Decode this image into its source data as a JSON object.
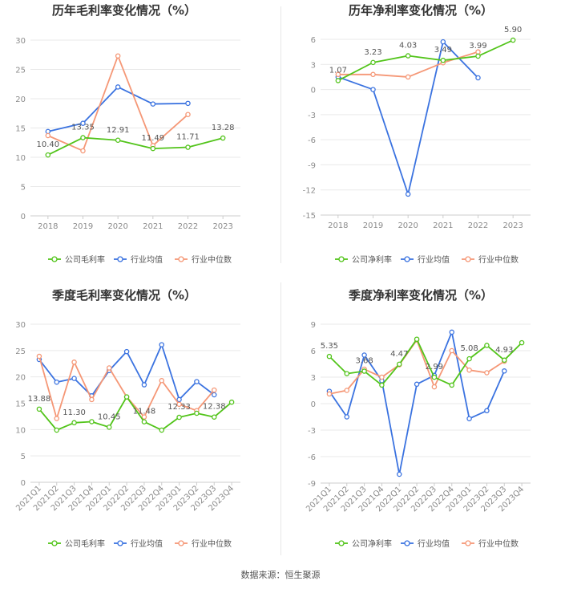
{
  "colors": {
    "company": "#52c41a",
    "industry_avg": "#3b73e0",
    "industry_median": "#f59776",
    "grid": "#e9e9e9",
    "axis_text": "#8c8c8c",
    "title": "#333333"
  },
  "source_text": "数据来源：恒生聚源",
  "chart_data": [
    {
      "type": "line",
      "title": "历年毛利率变化情况（%）",
      "categories": [
        "2018",
        "2019",
        "2020",
        "2021",
        "2022",
        "2023"
      ],
      "ylim": [
        0,
        30
      ],
      "yticks": [
        0,
        5,
        10,
        15,
        20,
        25,
        30
      ],
      "series": [
        {
          "name": "公司毛利率",
          "key": "company",
          "values": [
            10.4,
            13.35,
            12.91,
            11.49,
            11.71,
            13.28
          ]
        },
        {
          "name": "行业均值",
          "key": "industry_avg",
          "values": [
            14.4,
            15.8,
            22.0,
            19.1,
            19.2,
            null
          ]
        },
        {
          "name": "行业中位数",
          "key": "industry_median",
          "values": [
            13.7,
            11.1,
            27.3,
            12.0,
            17.3,
            null
          ]
        }
      ],
      "data_labels": [
        "10.40",
        "13.35",
        "12.91",
        "11.49",
        "11.71",
        "13.28"
      ]
    },
    {
      "type": "line",
      "title": "历年净利率变化情况（%）",
      "categories": [
        "2018",
        "2019",
        "2020",
        "2021",
        "2022",
        "2023"
      ],
      "ylim": [
        -15,
        6
      ],
      "yticks": [
        -15,
        -12,
        -9,
        -6,
        -3,
        0,
        3,
        6
      ],
      "series": [
        {
          "name": "公司净利率",
          "key": "company",
          "values": [
            1.07,
            3.23,
            4.03,
            3.49,
            3.99,
            5.9
          ]
        },
        {
          "name": "行业均值",
          "key": "industry_avg",
          "values": [
            1.5,
            0.0,
            -12.5,
            5.7,
            1.4,
            null
          ]
        },
        {
          "name": "行业中位数",
          "key": "industry_median",
          "values": [
            1.8,
            1.8,
            1.5,
            3.2,
            4.5,
            null
          ]
        }
      ],
      "data_labels": [
        "1.07",
        "3.23",
        "4.03",
        "3.49",
        "3.99",
        "5.90"
      ]
    },
    {
      "type": "line",
      "title": "季度毛利率变化情况（%）",
      "categories": [
        "2021Q1",
        "2021Q2",
        "2021Q3",
        "2021Q4",
        "2022Q1",
        "2022Q2",
        "2022Q3",
        "2022Q4",
        "2023Q1",
        "2023Q2",
        "2023Q3",
        "2023Q4"
      ],
      "ylim": [
        0,
        30
      ],
      "yticks": [
        0,
        5,
        10,
        15,
        20,
        25,
        30
      ],
      "series": [
        {
          "name": "公司毛利率",
          "key": "company",
          "values": [
            13.88,
            9.9,
            11.3,
            11.5,
            10.45,
            16.2,
            11.48,
            9.9,
            12.33,
            13.1,
            12.38,
            15.2
          ]
        },
        {
          "name": "行业均值",
          "key": "industry_avg",
          "values": [
            23.3,
            19.0,
            19.7,
            16.4,
            21.2,
            24.8,
            18.5,
            26.1,
            15.7,
            19.1,
            16.6,
            null
          ]
        },
        {
          "name": "行业中位数",
          "key": "industry_median",
          "values": [
            23.9,
            12.1,
            22.8,
            15.7,
            21.7,
            16.2,
            12.4,
            19.3,
            14.8,
            13.6,
            17.5,
            null
          ]
        }
      ],
      "data_labels": [
        "13.88",
        "",
        "11.30",
        "",
        "10.45",
        "",
        "11.48",
        "",
        "12.33",
        "",
        "12.38",
        ""
      ]
    },
    {
      "type": "line",
      "title": "季度净利率变化情况（%）",
      "categories": [
        "2021Q1",
        "2021Q2",
        "2021Q3",
        "2021Q4",
        "2022Q1",
        "2022Q2",
        "2022Q3",
        "2022Q4",
        "2023Q1",
        "2023Q2",
        "2023Q3",
        "2023Q4"
      ],
      "ylim": [
        -9,
        9
      ],
      "yticks": [
        -9,
        -6,
        -3,
        0,
        3,
        6,
        9
      ],
      "series": [
        {
          "name": "公司净利率",
          "key": "company",
          "values": [
            5.35,
            3.4,
            3.68,
            2.1,
            4.47,
            7.3,
            2.99,
            2.1,
            5.08,
            6.6,
            4.93,
            6.9
          ]
        },
        {
          "name": "行业均值",
          "key": "industry_avg",
          "values": [
            1.4,
            -1.5,
            5.5,
            2.6,
            -8.0,
            2.2,
            3.2,
            8.1,
            -1.7,
            -0.8,
            3.7,
            null
          ]
        },
        {
          "name": "行业中位数",
          "key": "industry_median",
          "values": [
            1.1,
            1.5,
            3.9,
            3.0,
            4.4,
            7.2,
            1.9,
            6.0,
            3.8,
            3.5,
            4.8,
            null
          ]
        }
      ],
      "data_labels": [
        "5.35",
        "",
        "3.68",
        "",
        "4.47",
        "",
        "2.99",
        "",
        "5.08",
        "",
        "4.93",
        ""
      ]
    }
  ]
}
